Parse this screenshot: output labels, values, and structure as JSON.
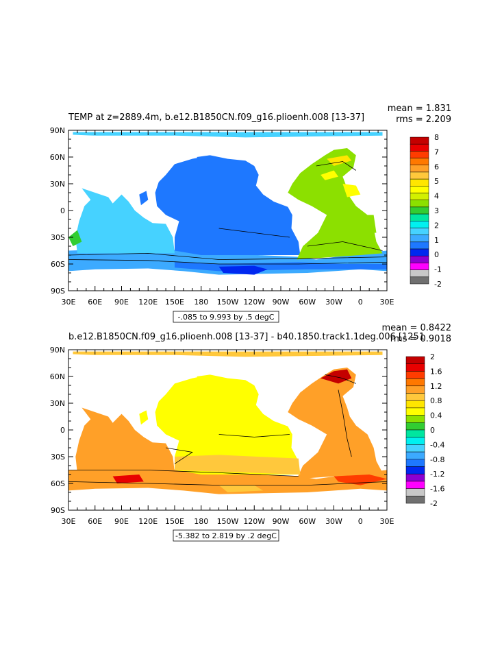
{
  "panels": [
    {
      "title": "TEMP at z=2889.4m, b.e12.B1850CN.f09_g16.plioenh.008 [13-37]",
      "stats": {
        "mean": "mean = 1.831",
        "rms": "rms = 2.209"
      },
      "range_label": "-.085 to 9.993 by .5 degC",
      "colorbar": {
        "labels": [
          "8",
          "7",
          "6",
          "5",
          "4",
          "3",
          "2",
          "1",
          "0",
          "-1",
          "-2"
        ],
        "colors": [
          "#c40000",
          "#e80000",
          "#ff3c00",
          "#ff7800",
          "#ffa028",
          "#ffc83c",
          "#ffe600",
          "#ffff00",
          "#d2f000",
          "#8ce000",
          "#32cd32",
          "#00e6a0",
          "#00f0f0",
          "#46d2ff",
          "#3caaff",
          "#1e78ff",
          "#0028f0",
          "#8c00d2",
          "#ff00ff",
          "#c8c8c8",
          "#707070"
        ]
      },
      "ocean_colors": {
        "atlantic": "#8ce000",
        "pacific": "#1e78ff",
        "indian": "#46d2ff",
        "southern": "#3caaff",
        "arctic": "#46d2ff"
      }
    },
    {
      "title": "b.e12.B1850CN.f09_g16.plioenh.008 [13-37] - b40.1850.track1.1deg.006 [1251",
      "stats": {
        "mean": "mean = 0.8422",
        "rms": "rms = 0.9018"
      },
      "range_label": "-5.382 to 2.819 by .2 degC",
      "colorbar": {
        "labels": [
          "2",
          "1.6",
          "1.2",
          "0.8",
          "0.4",
          "0",
          "-0.4",
          "-0.8",
          "-1.2",
          "-1.6",
          "-2"
        ],
        "colors": [
          "#c40000",
          "#e80000",
          "#ff3c00",
          "#ff7800",
          "#ffa028",
          "#ffc83c",
          "#ffe600",
          "#ffff00",
          "#8ce000",
          "#32cd32",
          "#00e6a0",
          "#00f0f0",
          "#46d2ff",
          "#3caaff",
          "#1e78ff",
          "#0028f0",
          "#8c00d2",
          "#ff00ff",
          "#c8c8c8",
          "#707070"
        ]
      },
      "ocean_colors": {
        "atlantic": "#ffa028",
        "pacific": "#ffff00",
        "indian": "#ffa028",
        "southern": "#ffa028",
        "arctic": "#ffc83c"
      }
    }
  ],
  "axes": {
    "lat_labels": [
      "90N",
      "60N",
      "30N",
      "0",
      "30S",
      "60S",
      "90S"
    ],
    "lon_labels": [
      "30E",
      "60E",
      "90E",
      "120E",
      "150E",
      "180",
      "150W",
      "120W",
      "90W",
      "60W",
      "30W",
      "0",
      "30E"
    ]
  }
}
